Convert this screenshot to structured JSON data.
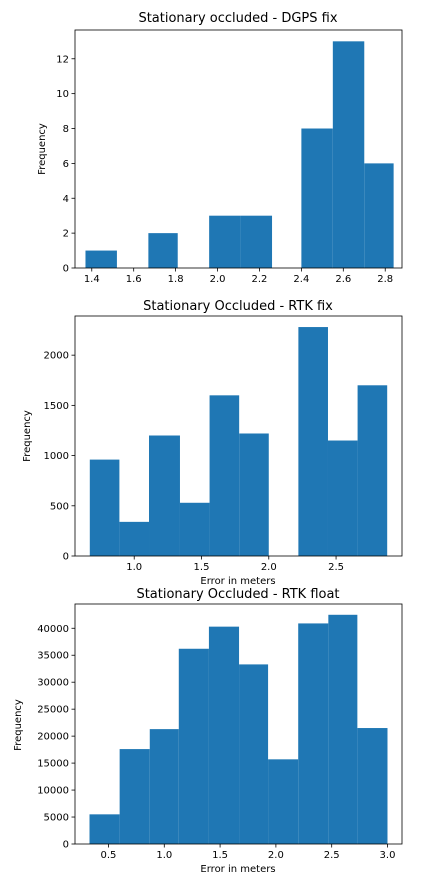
{
  "colors": {
    "bar": "#1f77b4",
    "axis": "#000000",
    "background": "#ffffff"
  },
  "chart_data": [
    {
      "type": "bar",
      "title": "Stationary occluded - DGPS fix",
      "xlabel": "",
      "ylabel": "Frequency",
      "xlim": [
        1.32,
        2.88
      ],
      "ylim": [
        0,
        13.65
      ],
      "grid": false,
      "bins": [
        {
          "x0": 1.37,
          "x1": 1.52,
          "value": 1
        },
        {
          "x0": 1.52,
          "x1": 1.67,
          "value": 0
        },
        {
          "x0": 1.67,
          "x1": 1.81,
          "value": 2
        },
        {
          "x0": 1.81,
          "x1": 1.96,
          "value": 0
        },
        {
          "x0": 1.96,
          "x1": 2.11,
          "value": 3
        },
        {
          "x0": 2.11,
          "x1": 2.26,
          "value": 3
        },
        {
          "x0": 2.26,
          "x1": 2.4,
          "value": 0
        },
        {
          "x0": 2.4,
          "x1": 2.55,
          "value": 8
        },
        {
          "x0": 2.55,
          "x1": 2.7,
          "value": 13
        },
        {
          "x0": 2.7,
          "x1": 2.84,
          "value": 6
        }
      ],
      "xticks": [
        {
          "v": 1.4,
          "label": "1.4"
        },
        {
          "v": 1.6,
          "label": "1.6"
        },
        {
          "v": 1.8,
          "label": "1.8"
        },
        {
          "v": 2.0,
          "label": "2.0"
        },
        {
          "v": 2.2,
          "label": "2.2"
        },
        {
          "v": 2.4,
          "label": "2.4"
        },
        {
          "v": 2.6,
          "label": "2.6"
        },
        {
          "v": 2.8,
          "label": "2.8"
        }
      ],
      "yticks": [
        {
          "v": 0,
          "label": "0"
        },
        {
          "v": 2,
          "label": "2"
        },
        {
          "v": 4,
          "label": "4"
        },
        {
          "v": 6,
          "label": "6"
        },
        {
          "v": 8,
          "label": "8"
        },
        {
          "v": 10,
          "label": "10"
        },
        {
          "v": 12,
          "label": "12"
        }
      ]
    },
    {
      "type": "bar",
      "title": "Stationary Occluded - RTK fix",
      "xlabel": "Error in meters",
      "ylabel": "Frequency",
      "xlim": [
        0.56,
        2.99
      ],
      "ylim": [
        0,
        2390
      ],
      "grid": false,
      "bins": [
        {
          "x0": 0.67,
          "x1": 0.89,
          "value": 960
        },
        {
          "x0": 0.89,
          "x1": 1.11,
          "value": 340
        },
        {
          "x0": 1.11,
          "x1": 1.34,
          "value": 1200
        },
        {
          "x0": 1.34,
          "x1": 1.56,
          "value": 530
        },
        {
          "x0": 1.56,
          "x1": 1.78,
          "value": 1600
        },
        {
          "x0": 1.78,
          "x1": 2.0,
          "value": 1220
        },
        {
          "x0": 2.0,
          "x1": 2.22,
          "value": 0
        },
        {
          "x0": 2.22,
          "x1": 2.44,
          "value": 2280
        },
        {
          "x0": 2.44,
          "x1": 2.66,
          "value": 1150
        },
        {
          "x0": 2.66,
          "x1": 2.88,
          "value": 1700
        }
      ],
      "xticks": [
        {
          "v": 1.0,
          "label": "1.0"
        },
        {
          "v": 1.5,
          "label": "1.5"
        },
        {
          "v": 2.0,
          "label": "2.0"
        },
        {
          "v": 2.5,
          "label": "2.5"
        }
      ],
      "yticks": [
        {
          "v": 0,
          "label": "0"
        },
        {
          "v": 500,
          "label": "500"
        },
        {
          "v": 1000,
          "label": "1000"
        },
        {
          "v": 1500,
          "label": "1500"
        },
        {
          "v": 2000,
          "label": "2000"
        }
      ]
    },
    {
      "type": "bar",
      "title": "Stationary Occluded - RTK float",
      "xlabel": "Error in meters",
      "ylabel": "Frequency",
      "xlim": [
        0.2,
        3.13
      ],
      "ylim": [
        0,
        44500
      ],
      "grid": false,
      "bins": [
        {
          "x0": 0.33,
          "x1": 0.6,
          "value": 5500
        },
        {
          "x0": 0.6,
          "x1": 0.87,
          "value": 17600
        },
        {
          "x0": 0.87,
          "x1": 1.13,
          "value": 21300
        },
        {
          "x0": 1.13,
          "x1": 1.4,
          "value": 36200
        },
        {
          "x0": 1.4,
          "x1": 1.67,
          "value": 40300
        },
        {
          "x0": 1.67,
          "x1": 1.93,
          "value": 33300
        },
        {
          "x0": 1.93,
          "x1": 2.2,
          "value": 15700
        },
        {
          "x0": 2.2,
          "x1": 2.47,
          "value": 40900
        },
        {
          "x0": 2.47,
          "x1": 2.73,
          "value": 42500
        },
        {
          "x0": 2.73,
          "x1": 3.0,
          "value": 21500
        }
      ],
      "xticks": [
        {
          "v": 0.5,
          "label": "0.5"
        },
        {
          "v": 1.0,
          "label": "1.0"
        },
        {
          "v": 1.5,
          "label": "1.5"
        },
        {
          "v": 2.0,
          "label": "2.0"
        },
        {
          "v": 2.5,
          "label": "2.5"
        },
        {
          "v": 3.0,
          "label": "3.0"
        }
      ],
      "yticks": [
        {
          "v": 0,
          "label": "0"
        },
        {
          "v": 5000,
          "label": "5000"
        },
        {
          "v": 10000,
          "label": "10000"
        },
        {
          "v": 15000,
          "label": "15000"
        },
        {
          "v": 20000,
          "label": "20000"
        },
        {
          "v": 25000,
          "label": "25000"
        },
        {
          "v": 30000,
          "label": "30000"
        },
        {
          "v": 35000,
          "label": "35000"
        },
        {
          "v": 40000,
          "label": "40000"
        }
      ]
    }
  ]
}
